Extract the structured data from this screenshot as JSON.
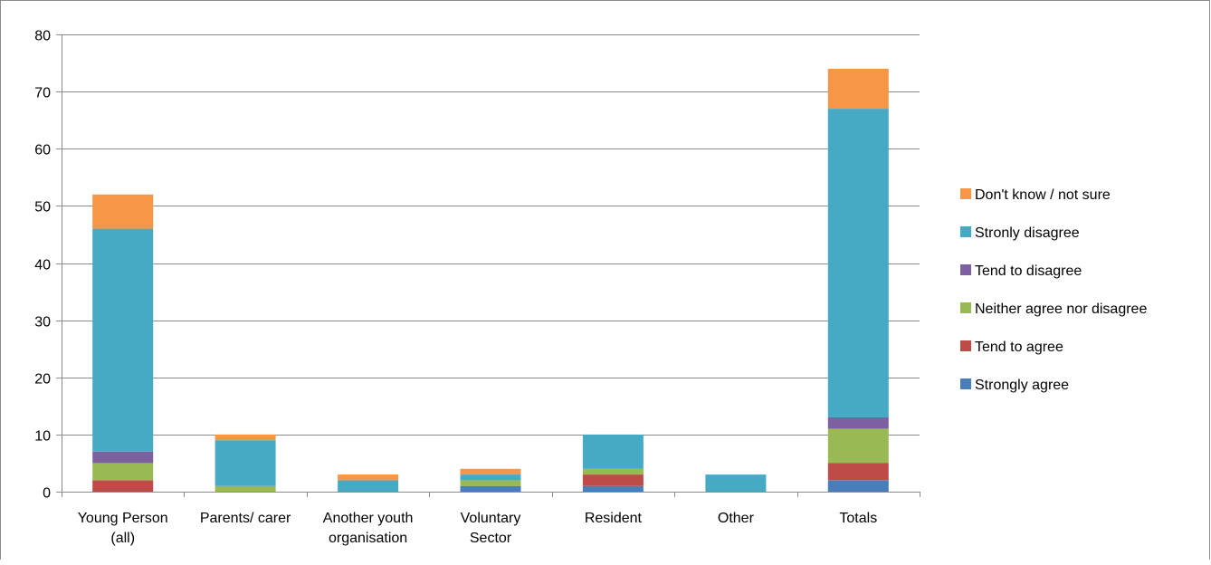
{
  "chart_data": {
    "type": "bar",
    "stacked": true,
    "title": "",
    "xlabel": "",
    "ylabel": "",
    "ylim": [
      0,
      80
    ],
    "yticks": [
      0,
      10,
      20,
      30,
      40,
      50,
      60,
      70,
      80
    ],
    "grid": true,
    "legend_position": "right",
    "categories": [
      [
        "Young Person",
        "(all)"
      ],
      [
        "Parents/ carer"
      ],
      [
        "Another youth",
        "organisation"
      ],
      [
        "Voluntary",
        "Sector"
      ],
      [
        "Resident"
      ],
      [
        "Other"
      ],
      [
        "Totals"
      ]
    ],
    "series": [
      {
        "name": "Strongly agree",
        "color": "#4a7ebb",
        "values": [
          0,
          0,
          0,
          1,
          1,
          0,
          2
        ]
      },
      {
        "name": "Tend to agree",
        "color": "#be4b48",
        "values": [
          2,
          0,
          0,
          0,
          2,
          0,
          3
        ]
      },
      {
        "name": "Neither agree nor disagree",
        "color": "#98b954",
        "values": [
          3,
          1,
          0,
          1,
          1,
          0,
          6
        ]
      },
      {
        "name": "Tend to disagree",
        "color": "#7d60a0",
        "values": [
          2,
          0,
          0,
          0,
          0,
          0,
          2
        ]
      },
      {
        "name": "Stronly disagree",
        "color": "#46aac5",
        "values": [
          39,
          8,
          2,
          1,
          6,
          3,
          54
        ]
      },
      {
        "name": "Don't know / not sure",
        "color": "#f79646",
        "values": [
          6,
          1,
          1,
          1,
          0,
          0,
          7
        ]
      }
    ]
  }
}
